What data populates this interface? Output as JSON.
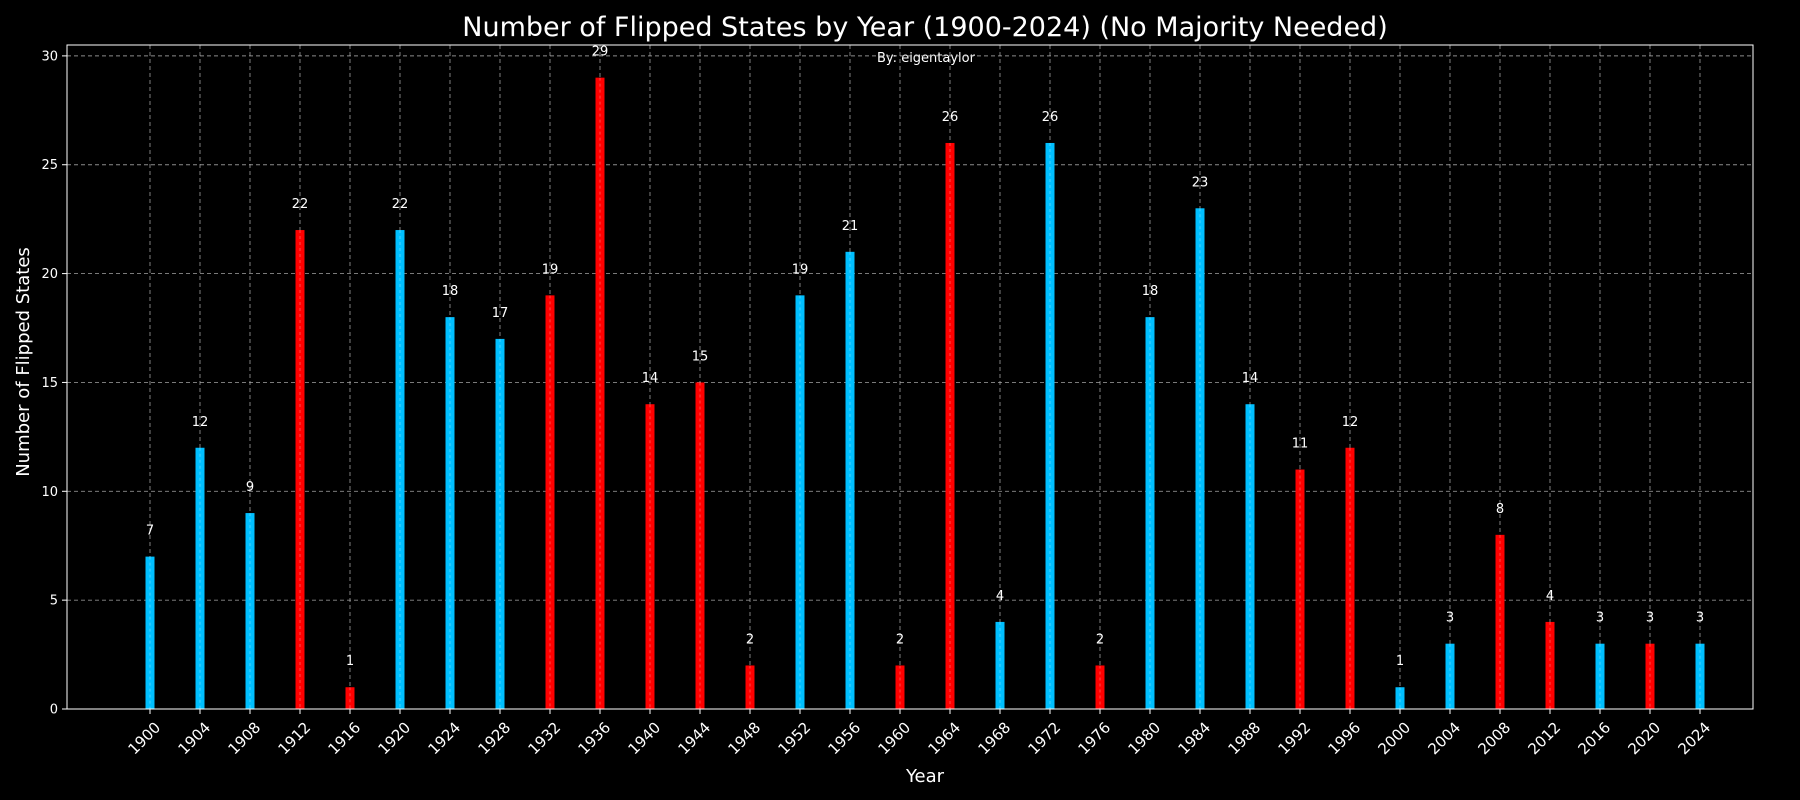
{
  "chart_data": {
    "type": "bar",
    "title": "Number of Flipped States by Year (1900-2024) (No Majority Needed)",
    "subtitle": "By: eigentaylor",
    "xlabel": "Year",
    "ylabel": "Number of Flipped States",
    "ylim": [
      0,
      30.5
    ],
    "yticks": [
      "0",
      "5",
      "10",
      "15",
      "20",
      "25",
      "30"
    ],
    "grid": true,
    "colors": {
      "blue": "#00bfff",
      "red": "#ff0000",
      "background": "#000000",
      "foreground": "#ffffff"
    },
    "categories": [
      "1900",
      "1904",
      "1908",
      "1912",
      "1916",
      "1920",
      "1924",
      "1928",
      "1932",
      "1936",
      "1940",
      "1944",
      "1948",
      "1952",
      "1956",
      "1960",
      "1964",
      "1968",
      "1972",
      "1976",
      "1980",
      "1984",
      "1988",
      "1992",
      "1996",
      "2000",
      "2004",
      "2008",
      "2012",
      "2016",
      "2020",
      "2024"
    ],
    "values": [
      7,
      12,
      9,
      22,
      1,
      22,
      18,
      17,
      19,
      29,
      14,
      15,
      2,
      19,
      21,
      2,
      26,
      4,
      26,
      2,
      18,
      23,
      14,
      11,
      12,
      1,
      3,
      8,
      4,
      3,
      3,
      3
    ],
    "bar_colors": [
      "blue",
      "blue",
      "blue",
      "red",
      "red",
      "blue",
      "blue",
      "blue",
      "red",
      "red",
      "red",
      "red",
      "red",
      "blue",
      "blue",
      "red",
      "red",
      "blue",
      "blue",
      "red",
      "blue",
      "blue",
      "blue",
      "red",
      "red",
      "blue",
      "blue",
      "red",
      "red",
      "blue",
      "red",
      "blue"
    ]
  }
}
